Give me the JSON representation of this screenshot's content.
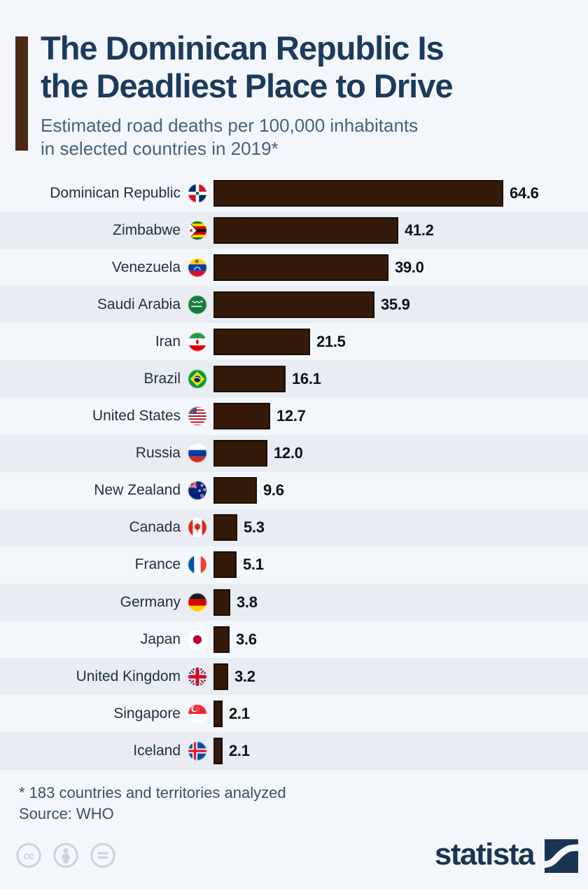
{
  "header": {
    "title_line1": "The Dominican Republic Is",
    "title_line2": "the Deadliest Place to Drive",
    "subtitle_line1": "Estimated road deaths per 100,000 inhabitants",
    "subtitle_line2": "in selected countries in 2019*"
  },
  "chart_data": {
    "type": "bar",
    "orientation": "horizontal",
    "title": "The Dominican Republic Is the Deadliest Place to Drive",
    "subtitle": "Estimated road deaths per 100,000 inhabitants in selected countries in 2019*",
    "xlabel": "",
    "ylabel": "",
    "xlim": [
      0,
      64.6
    ],
    "grid": false,
    "legend": false,
    "categories": [
      "Dominican Republic",
      "Zimbabwe",
      "Venezuela",
      "Saudi Arabia",
      "Iran",
      "Brazil",
      "United States",
      "Russia",
      "New Zealand",
      "Canada",
      "France",
      "Germany",
      "Japan",
      "United Kingdom",
      "Singapore",
      "Iceland"
    ],
    "values": [
      64.6,
      41.2,
      39.0,
      35.9,
      21.5,
      16.1,
      12.7,
      12.0,
      9.6,
      5.3,
      5.1,
      3.8,
      3.6,
      3.2,
      2.1,
      2.1
    ],
    "display_values": [
      "64.6",
      "41.2",
      "39.0",
      "35.9",
      "21.5",
      "16.1",
      "12.7",
      "12.0",
      "9.6",
      "5.3",
      "5.1",
      "3.8",
      "3.6",
      "3.2",
      "2.1",
      "2.1"
    ],
    "flags": [
      "dominican-republic",
      "zimbabwe",
      "venezuela",
      "saudi-arabia",
      "iran",
      "brazil",
      "united-states",
      "russia",
      "new-zealand",
      "canada",
      "france",
      "germany",
      "japan",
      "united-kingdom",
      "singapore",
      "iceland"
    ],
    "bar_color": "#331a09",
    "stripe_color": "#e9edf3"
  },
  "footer": {
    "footnote": "* 183 countries and territories analyzed",
    "source": "Source: WHO",
    "license_icons": [
      "cc-icon",
      "attribution-icon",
      "no-derivatives-icon"
    ],
    "brand_name": "statista"
  },
  "colors": {
    "background": "#f3f6fa",
    "accent_bar": "#4a2a16",
    "title": "#1d3a5c",
    "subtitle": "#47627c",
    "brand_navy": "#1a3553",
    "license_gray": "#c9d2dd"
  }
}
